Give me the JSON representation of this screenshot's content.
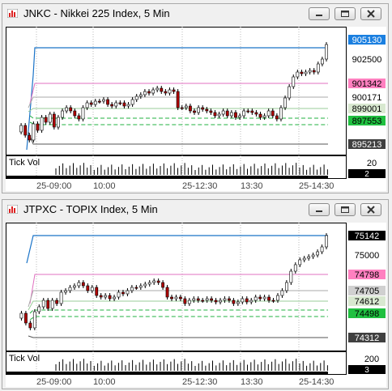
{
  "windows": [
    {
      "title": "JNKC - Nikkei 225 Index, 5 Min",
      "price_labels": [
        {
          "text": "905130",
          "bg": "#1a7fe0",
          "fg": "#ffffff",
          "kind": "last"
        },
        {
          "text": "902500",
          "bg": "none",
          "fg": "#000000",
          "kind": "tick"
        },
        {
          "text": "901342",
          "bg": "#ff80c0",
          "fg": "#000000",
          "kind": "level"
        },
        {
          "text": "900171",
          "bg": "#ffffff",
          "fg": "#000000",
          "kind": "level"
        },
        {
          "text": "899001",
          "bg": "#d8e8d0",
          "fg": "#000000",
          "kind": "level"
        },
        {
          "text": "897553",
          "bg": "#20c040",
          "fg": "#000000",
          "kind": "level"
        },
        {
          "text": "895213",
          "bg": "#404040",
          "fg": "#ffffff",
          "kind": "level"
        }
      ],
      "volume": {
        "label": "Tick Vol",
        "axis_label": "20",
        "value": "2"
      },
      "time_labels": [
        "25-09:00",
        "10:00",
        "25-12:30",
        "13:30",
        "25-14:30"
      ],
      "icons": [
        "chart-window-icon",
        "minimize-icon",
        "maximize-icon",
        "close-icon"
      ]
    },
    {
      "title": "JTPXC - TOPIX Index, 5 Min",
      "price_labels": [
        {
          "text": "75142",
          "bg": "#000000",
          "fg": "#ffffff",
          "kind": "last"
        },
        {
          "text": "75000",
          "bg": "none",
          "fg": "#000000",
          "kind": "tick"
        },
        {
          "text": "74798",
          "bg": "#ff80c0",
          "fg": "#000000",
          "kind": "level"
        },
        {
          "text": "74705",
          "bg": "#d0d0d0",
          "fg": "#000000",
          "kind": "level"
        },
        {
          "text": "74612",
          "bg": "#d8e8d0",
          "fg": "#000000",
          "kind": "level"
        },
        {
          "text": "74498",
          "bg": "#20c040",
          "fg": "#000000",
          "kind": "level"
        },
        {
          "text": "74312",
          "bg": "#404040",
          "fg": "#ffffff",
          "kind": "level"
        }
      ],
      "volume": {
        "label": "Tick Vol",
        "axis_label": "200",
        "value": "3"
      },
      "time_labels": [
        "25-09:00",
        "10:00",
        "25-12:30",
        "13:30",
        "25-14:30"
      ],
      "icons": [
        "chart-window-icon",
        "minimize-icon",
        "maximize-icon",
        "close-icon"
      ]
    }
  ]
}
